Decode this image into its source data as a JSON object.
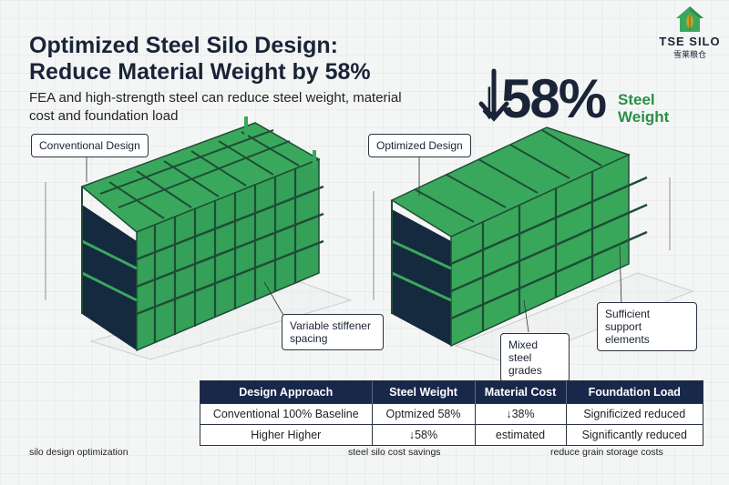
{
  "header": {
    "title": "Optimized Steel Silo Design: Reduce Material Weight by 58%",
    "subtitle": "FEA and high-strength steel can reduce steel weight, material cost and foundation load"
  },
  "logo": {
    "name": "TSE SILO",
    "subtext": "雪莱粮仓"
  },
  "stat": {
    "value": "↓58%",
    "label": "Steel Weight"
  },
  "colors": {
    "steel_green": "#3aa85c",
    "steel_dark": "#1f4d36",
    "navy": "#17284a",
    "accent_green": "#2a8f48"
  },
  "callouts": {
    "conventional": "Conventional Design",
    "optimized": "Optimized Design",
    "variable_stiffener": "Variable stiffener spacing",
    "sufficient_support": "Sufficient support elements",
    "mixed_steel": "Mixed steel grades"
  },
  "table": {
    "headers": [
      "Design Approach",
      "Steel Weight",
      "Material Cost",
      "Foundation Load"
    ],
    "rows": [
      [
        "Conventional 100% Baseline",
        "Optmized 58%",
        "↓38%",
        "Significized reduced"
      ],
      [
        "Higher Higher",
        "↓58%",
        "estimated",
        "Significantly reduced"
      ]
    ]
  },
  "footer": {
    "left": "silo design optimization",
    "center": "steel silo cost savings",
    "right": "reduce grain storage costs"
  }
}
